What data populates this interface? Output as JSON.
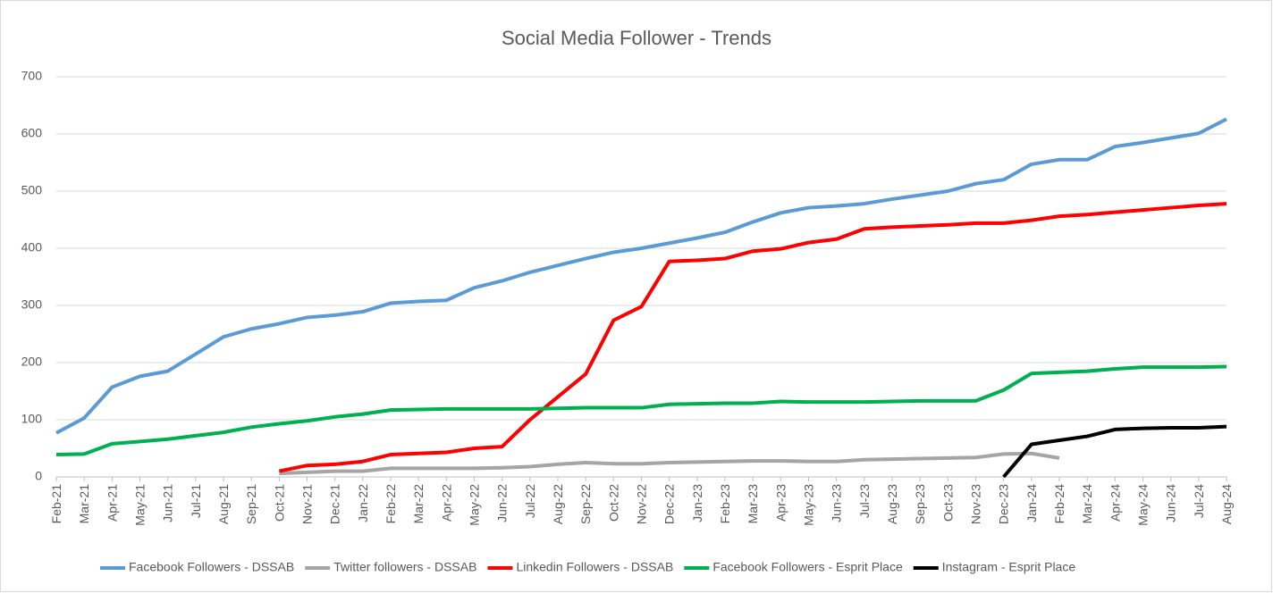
{
  "chart_data": {
    "type": "line",
    "title": "Social Media Follower - Trends",
    "categories": [
      "Feb-21",
      "Mar-21",
      "Apr-21",
      "May-21",
      "Jun-21",
      "Jul-21",
      "Aug-21",
      "Sep-21",
      "Oct-21",
      "Nov-21",
      "Dec-21",
      "Jan-22",
      "Feb-22",
      "Mar-22",
      "Apr-22",
      "May-22",
      "Jun-22",
      "Jul-22",
      "Aug-22",
      "Sep-22",
      "Oct-22",
      "Nov-22",
      "Dec-22",
      "Jan-23",
      "Feb-23",
      "Mar-23",
      "Apr-23",
      "May-23",
      "Jun-23",
      "Jul-23",
      "Aug-23",
      "Sep-23",
      "Oct-23",
      "Nov-23",
      "Dec-23",
      "Jan-24",
      "Feb-24",
      "Mar-24",
      "Apr-24",
      "May-24",
      "Jun-24",
      "Jul-24",
      "Aug-24"
    ],
    "series": [
      {
        "name": "Facebook Followers - DSSAB",
        "color": "#5b9bd5",
        "values": [
          77,
          103,
          157,
          176,
          185,
          215,
          245,
          259,
          268,
          279,
          283,
          289,
          304,
          307,
          309,
          331,
          343,
          358,
          370,
          382,
          393,
          400,
          409,
          418,
          428,
          446,
          462,
          471,
          474,
          478,
          486,
          493,
          500,
          513,
          520,
          547,
          555,
          555,
          578,
          585,
          593,
          601,
          626
        ]
      },
      {
        "name": "Twitter followers - DSSAB",
        "color": "#a5a5a5",
        "values": [
          null,
          null,
          null,
          null,
          null,
          null,
          null,
          null,
          6,
          8,
          10,
          10,
          15,
          15,
          15,
          15,
          16,
          18,
          22,
          25,
          23,
          23,
          25,
          26,
          27,
          28,
          28,
          27,
          27,
          30,
          31,
          32,
          33,
          34,
          40,
          41,
          33,
          null,
          null,
          null,
          null,
          null,
          null
        ]
      },
      {
        "name": "Linkedin Followers - DSSAB",
        "color": "#ff0000",
        "values": [
          null,
          null,
          null,
          null,
          null,
          null,
          null,
          null,
          10,
          20,
          22,
          27,
          39,
          41,
          43,
          50,
          53,
          100,
          140,
          180,
          274,
          298,
          377,
          379,
          382,
          395,
          399,
          410,
          416,
          434,
          437,
          439,
          441,
          444,
          444,
          449,
          456,
          459,
          463,
          467,
          471,
          475,
          478
        ]
      },
      {
        "name": "Facebook Followers - Esprit Place",
        "color": "#00b050",
        "values": [
          39,
          40,
          58,
          62,
          66,
          72,
          78,
          87,
          93,
          98,
          105,
          110,
          117,
          118,
          119,
          119,
          119,
          119,
          120,
          121,
          121,
          121,
          127,
          128,
          129,
          129,
          132,
          131,
          131,
          131,
          132,
          133,
          133,
          133,
          152,
          181,
          183,
          185,
          189,
          192,
          192,
          192,
          193
        ]
      },
      {
        "name": "Instagram - Esprit Place",
        "color": "#000000",
        "values": [
          null,
          null,
          null,
          null,
          null,
          null,
          null,
          null,
          null,
          null,
          null,
          null,
          null,
          null,
          null,
          null,
          null,
          null,
          null,
          null,
          null,
          null,
          null,
          null,
          null,
          null,
          null,
          null,
          null,
          null,
          null,
          null,
          null,
          null,
          0,
          57,
          64,
          71,
          83,
          85,
          86,
          86,
          88
        ]
      }
    ],
    "ylim": [
      0,
      700
    ],
    "yticks": [
      0,
      100,
      200,
      300,
      400,
      500,
      600,
      700
    ],
    "grid": true,
    "legend": "bottom"
  }
}
